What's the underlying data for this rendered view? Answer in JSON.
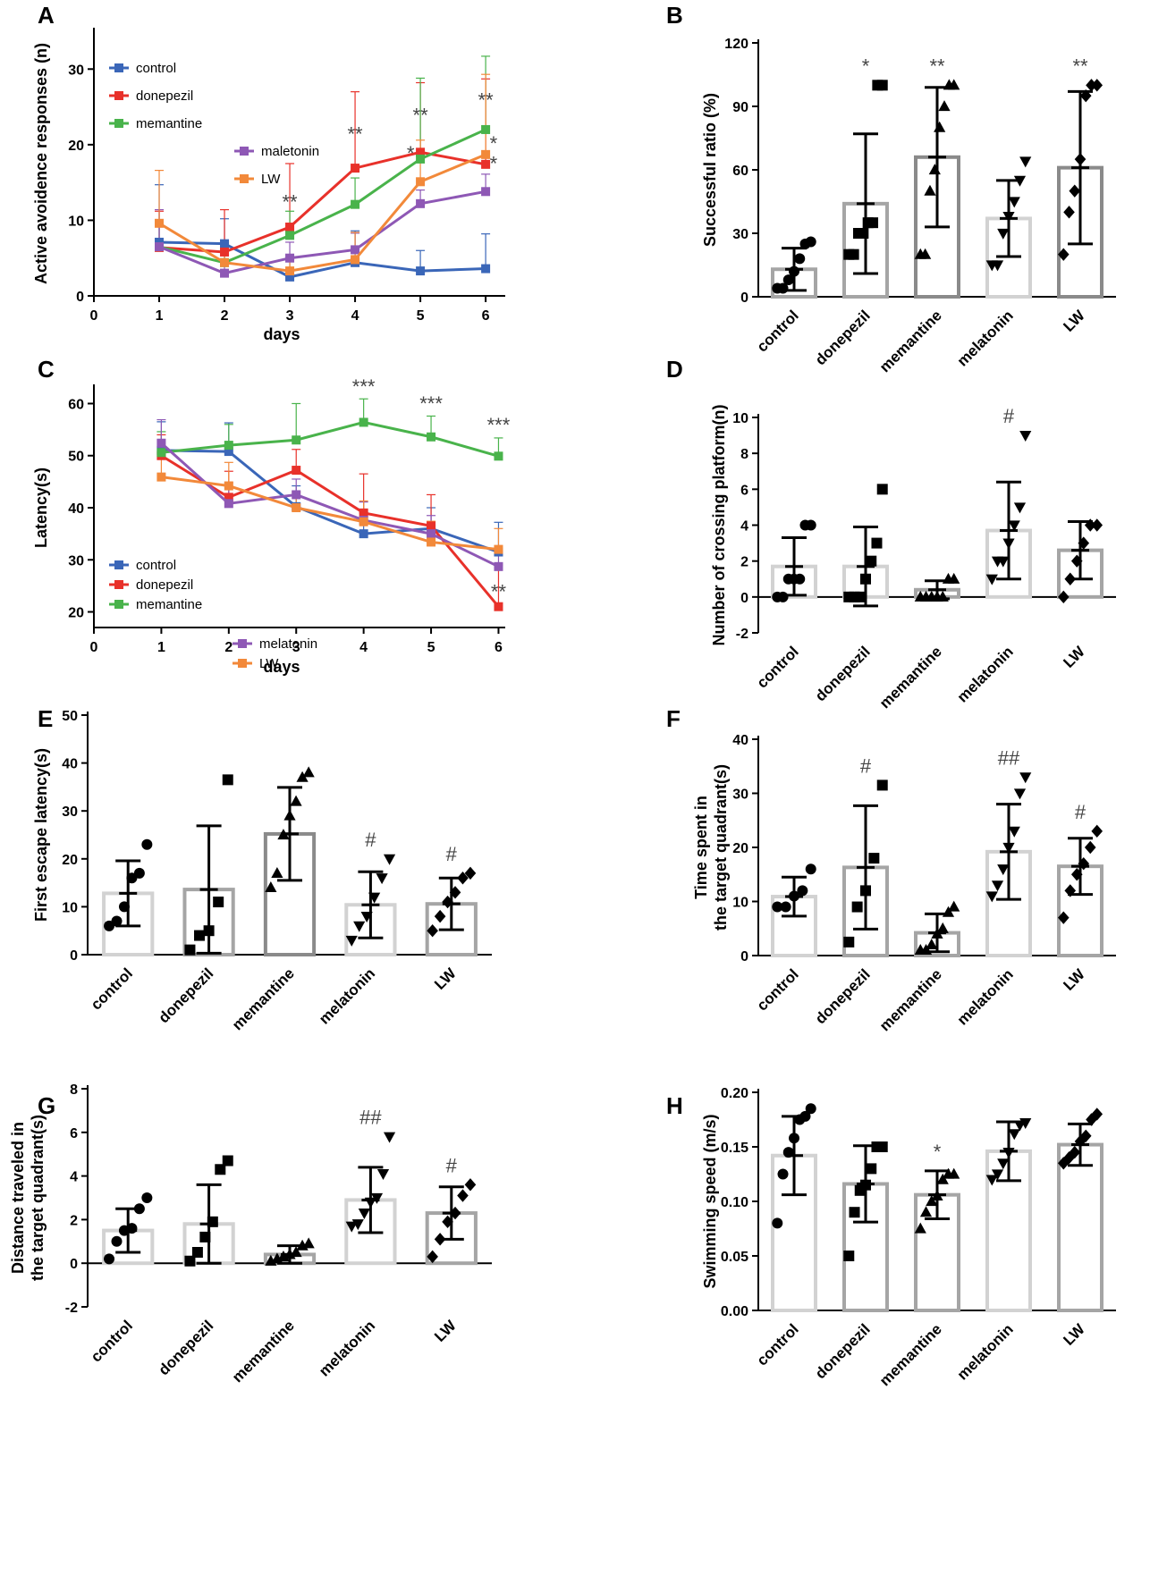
{
  "colors": {
    "control": "#3a66b8",
    "donepezil": "#e8312a",
    "memantine": "#49b34b",
    "melatonin": "#8e58b5",
    "LW": "#f2893a",
    "bar_light": "#d2d2d2",
    "bar_mid": "#a5a5a5",
    "bar_dark": "#8a8a8a",
    "sig_color": "#444444"
  },
  "chart_data": [
    {
      "panel": "A",
      "type": "line",
      "xlabel": "days",
      "ylabel": "Active avoidence responses (n)",
      "xlim": [
        0,
        6.3
      ],
      "ylim": [
        0,
        35
      ],
      "xticks": [
        "0",
        "1",
        "2",
        "3",
        "4",
        "5",
        "6"
      ],
      "yticks": [
        "0",
        "10",
        "20",
        "30"
      ],
      "x": [
        1,
        2,
        3,
        4,
        5,
        6
      ],
      "legend_position": "top-left",
      "series": [
        {
          "name": "control",
          "label": "control",
          "color_key": "control",
          "values": [
            7.1,
            6.9,
            2.5,
            4.4,
            3.3,
            3.6
          ],
          "err": [
            7.6,
            3.3,
            2.5,
            4.2,
            2.7,
            4.6
          ]
        },
        {
          "name": "donepezil",
          "label": "donepezil",
          "color_key": "donepezil",
          "values": [
            6.4,
            5.8,
            9.1,
            16.9,
            19.0,
            17.4
          ],
          "err": [
            4.8,
            5.6,
            8.4,
            10.1,
            9.2,
            11.3
          ]
        },
        {
          "name": "memantine",
          "label": "memantine",
          "color_key": "memantine",
          "values": [
            6.5,
            4.4,
            8.0,
            12.1,
            18.1,
            22.0
          ],
          "err": [
            3.4,
            2.2,
            3.2,
            3.5,
            10.7,
            9.7
          ]
        },
        {
          "name": "maletonin",
          "label": "maletonin",
          "color_key": "melatonin",
          "values": [
            6.5,
            3.0,
            5.0,
            6.1,
            12.2,
            13.8
          ],
          "err": [
            4.9,
            4.1,
            2.1,
            2.2,
            1.8,
            2.3
          ]
        },
        {
          "name": "LW",
          "label": "LW",
          "color_key": "LW",
          "values": [
            9.6,
            4.4,
            3.3,
            4.8,
            15.1,
            18.7
          ],
          "err": [
            7.0,
            1.9,
            1.5,
            3.6,
            5.5,
            10.6
          ]
        }
      ],
      "annotations": [
        {
          "text": "**",
          "x": 3,
          "y": 11.5
        },
        {
          "text": "**",
          "x": 4,
          "y": 20.5
        },
        {
          "text": "**",
          "x": 5,
          "y": 23.0
        },
        {
          "text": "*",
          "x": 4.85,
          "y": 18.0
        },
        {
          "text": "**",
          "x": 6,
          "y": 25.0
        },
        {
          "text": "*",
          "x": 6.12,
          "y": 19.3
        },
        {
          "text": "*",
          "x": 6.12,
          "y": 16.6
        }
      ]
    },
    {
      "panel": "B",
      "type": "bar",
      "ylabel": "Successful ratio (%)",
      "ylim": [
        0,
        120
      ],
      "yticks": [
        "0",
        "30",
        "60",
        "90",
        "120"
      ],
      "categories": [
        "control",
        "donepezil",
        "memantine",
        "melatonin",
        "LW"
      ],
      "values": [
        13,
        44,
        66,
        37,
        61
      ],
      "sd": [
        10,
        33,
        33,
        18,
        36
      ],
      "bar_shades": [
        "bar_mid",
        "bar_mid",
        "bar_dark",
        "bar_light",
        "bar_dark"
      ],
      "markers": [
        "circle",
        "square",
        "triangle",
        "triangle-down",
        "diamond"
      ],
      "points": [
        [
          4,
          4,
          8,
          12,
          18,
          25,
          26
        ],
        [
          20,
          20,
          30,
          30,
          35,
          35,
          100,
          100
        ],
        [
          20,
          20,
          50,
          60,
          80,
          90,
          100,
          100
        ],
        [
          15,
          15,
          30,
          38,
          45,
          55,
          64
        ],
        [
          20,
          40,
          50,
          65,
          95,
          100,
          100
        ]
      ],
      "annotations": [
        "",
        "*",
        "**",
        "",
        "**"
      ]
    },
    {
      "panel": "C",
      "type": "line",
      "xlabel": "days",
      "ylabel": "Latency(s)",
      "xlim": [
        0,
        6.1
      ],
      "ylim": [
        17,
        63
      ],
      "xticks": [
        "0",
        "1",
        "2",
        "3",
        "4",
        "5",
        "6"
      ],
      "yticks": [
        "20",
        "30",
        "40",
        "50",
        "60"
      ],
      "x": [
        1,
        2,
        3,
        4,
        5,
        6
      ],
      "legend_position": "bottom-left",
      "series": [
        {
          "name": "control",
          "label": "control",
          "color_key": "control",
          "values": [
            51.0,
            50.8,
            40.2,
            35.0,
            36.0,
            31.5
          ],
          "err": [
            5.5,
            5.5,
            4.0,
            4.0,
            4.0,
            5.7
          ]
        },
        {
          "name": "donepezil",
          "label": "donepezil",
          "color_key": "donepezil",
          "values": [
            50.0,
            42.0,
            47.2,
            39.0,
            36.5,
            21.0
          ],
          "err": [
            4.0,
            5.0,
            4.0,
            7.5,
            6.0,
            8.0
          ]
        },
        {
          "name": "memantine",
          "label": "memantine",
          "color_key": "memantine",
          "values": [
            50.6,
            52.0,
            53.0,
            56.4,
            53.6,
            49.9
          ],
          "err": [
            4.0,
            4.0,
            7.0,
            4.5,
            4.0,
            3.5
          ]
        },
        {
          "name": "melatonin",
          "label": "melatonin",
          "color_key": "melatonin",
          "values": [
            52.4,
            40.8,
            42.5,
            37.6,
            35.0,
            28.7
          ],
          "err": [
            4.5,
            4.0,
            3.0,
            3.5,
            3.5,
            3.0
          ]
        },
        {
          "name": "LW",
          "label": "LW",
          "color_key": "LW",
          "values": [
            45.9,
            44.2,
            40.0,
            37.3,
            33.4,
            32.0
          ],
          "err": [
            4.0,
            4.5,
            3.0,
            4.0,
            4.0,
            4.0
          ]
        }
      ],
      "annotations": [
        {
          "text": "***",
          "x": 4,
          "y": 62.0
        },
        {
          "text": "***",
          "x": 5,
          "y": 58.7
        },
        {
          "text": "***",
          "x": 6,
          "y": 54.6
        },
        {
          "text": "**",
          "x": 6,
          "y": 22.6
        }
      ]
    },
    {
      "panel": "D",
      "type": "bar",
      "ylabel": "Number of crossing platform(n)",
      "ylim": [
        -2,
        10
      ],
      "yticks": [
        "-2",
        "0",
        "2",
        "4",
        "6",
        "8",
        "10"
      ],
      "categories": [
        "control",
        "donepezil",
        "memantine",
        "melatonin",
        "LW"
      ],
      "values": [
        1.7,
        1.7,
        0.4,
        3.7,
        2.6
      ],
      "sd": [
        1.6,
        2.2,
        0.5,
        2.7,
        1.6
      ],
      "bar_shades": [
        "bar_light",
        "bar_light",
        "bar_mid",
        "bar_light",
        "bar_mid"
      ],
      "markers": [
        "circle",
        "square",
        "triangle",
        "triangle-down",
        "diamond"
      ],
      "points": [
        [
          0,
          0,
          1,
          1,
          1,
          4,
          4
        ],
        [
          0,
          0,
          0,
          1,
          2,
          3,
          6
        ],
        [
          0,
          0,
          0,
          0,
          0,
          1,
          1
        ],
        [
          1,
          2,
          2,
          3,
          4,
          5,
          9
        ],
        [
          0,
          1,
          2,
          3,
          4,
          4
        ]
      ],
      "annotations": [
        "",
        "",
        "",
        "#",
        ""
      ]
    },
    {
      "panel": "E",
      "type": "bar",
      "ylabel": "First escape latency(s)",
      "ylim": [
        0,
        50
      ],
      "yticks": [
        "0",
        "10",
        "20",
        "30",
        "40",
        "50"
      ],
      "categories": [
        "control",
        "donepezil",
        "memantine",
        "melatonin",
        "LW"
      ],
      "values": [
        12.8,
        13.6,
        25.2,
        10.4,
        10.6
      ],
      "sd": [
        6.8,
        13.3,
        9.7,
        6.9,
        5.4
      ],
      "bar_shades": [
        "bar_light",
        "bar_mid",
        "bar_dark",
        "bar_light",
        "bar_mid"
      ],
      "markers": [
        "circle",
        "square",
        "triangle",
        "triangle-down",
        "diamond"
      ],
      "points": [
        [
          6,
          7,
          10,
          16,
          17,
          23
        ],
        [
          1,
          4,
          5,
          11,
          36.5
        ],
        [
          14,
          17,
          25,
          29,
          32,
          37,
          38
        ],
        [
          3,
          6,
          8,
          12,
          16,
          20
        ],
        [
          5,
          8,
          11,
          13,
          16,
          17
        ]
      ],
      "annotations": [
        "",
        "",
        "",
        "#",
        "#"
      ]
    },
    {
      "panel": "F",
      "type": "bar",
      "ylabel": "Time spent in the target quadrant(s)",
      "ylim": [
        0,
        40
      ],
      "yticks": [
        "0",
        "10",
        "20",
        "30",
        "40"
      ],
      "categories": [
        "control",
        "donepezil",
        "memantine",
        "melatonin",
        "LW"
      ],
      "values": [
        10.9,
        16.3,
        4.2,
        19.2,
        16.5
      ],
      "sd": [
        3.6,
        11.4,
        3.5,
        8.8,
        5.2
      ],
      "bar_shades": [
        "bar_light",
        "bar_mid",
        "bar_mid",
        "bar_light",
        "bar_mid"
      ],
      "markers": [
        "circle",
        "square",
        "triangle",
        "triangle-down",
        "diamond"
      ],
      "points": [
        [
          9,
          9,
          11,
          12,
          16
        ],
        [
          2.5,
          9,
          12,
          18,
          31.5
        ],
        [
          1,
          1,
          2,
          4,
          5,
          8,
          9
        ],
        [
          11,
          13,
          16,
          20,
          23,
          30,
          33
        ],
        [
          7,
          12,
          15,
          17,
          20,
          23
        ]
      ],
      "annotations": [
        "",
        "#",
        "",
        "##",
        "#"
      ]
    },
    {
      "panel": "G",
      "type": "bar",
      "ylabel": "Distance traveled in the target quadrant(s)",
      "ylim": [
        -2,
        8
      ],
      "yticks": [
        "-2",
        "0",
        "2",
        "4",
        "6",
        "8"
      ],
      "categories": [
        "control",
        "donepezil",
        "memantine",
        "melatonin",
        "LW"
      ],
      "values": [
        1.5,
        1.8,
        0.4,
        2.9,
        2.3
      ],
      "sd": [
        1.0,
        1.8,
        0.4,
        1.5,
        1.2
      ],
      "bar_shades": [
        "bar_light",
        "bar_light",
        "bar_mid",
        "bar_light",
        "bar_mid"
      ],
      "markers": [
        "circle",
        "square",
        "triangle",
        "triangle-down",
        "diamond"
      ],
      "points": [
        [
          0.2,
          1.0,
          1.5,
          1.6,
          2.5,
          3.0
        ],
        [
          0.1,
          0.5,
          1.2,
          1.9,
          4.3,
          4.7
        ],
        [
          0.1,
          0.2,
          0.3,
          0.4,
          0.5,
          0.8,
          0.9
        ],
        [
          1.7,
          1.8,
          2.3,
          2.8,
          3.0,
          4.1,
          5.8
        ],
        [
          0.3,
          1.1,
          1.9,
          2.3,
          3.1,
          3.6
        ]
      ],
      "annotations": [
        "",
        "",
        "",
        "##",
        "#"
      ]
    },
    {
      "panel": "H",
      "type": "bar",
      "ylabel": "Swimming speed (m/s)",
      "ylim": [
        0,
        0.2
      ],
      "yticks": [
        "0.00",
        "0.05",
        "0.10",
        "0.15",
        "0.20"
      ],
      "categories": [
        "control",
        "donepezil",
        "memantine",
        "melatonin",
        "LW"
      ],
      "values": [
        0.142,
        0.116,
        0.106,
        0.146,
        0.152
      ],
      "sd": [
        0.036,
        0.035,
        0.022,
        0.027,
        0.019
      ],
      "bar_shades": [
        "bar_light",
        "bar_mid",
        "bar_mid",
        "bar_light",
        "bar_mid"
      ],
      "markers": [
        "circle",
        "square",
        "triangle",
        "triangle-down",
        "diamond"
      ],
      "points": [
        [
          0.08,
          0.125,
          0.145,
          0.158,
          0.175,
          0.178,
          0.185
        ],
        [
          0.05,
          0.09,
          0.11,
          0.115,
          0.13,
          0.15,
          0.15
        ],
        [
          0.075,
          0.09,
          0.1,
          0.105,
          0.12,
          0.125,
          0.125
        ],
        [
          0.12,
          0.125,
          0.135,
          0.145,
          0.162,
          0.17,
          0.172
        ],
        [
          0.135,
          0.14,
          0.145,
          0.155,
          0.16,
          0.175,
          0.18
        ]
      ],
      "annotations": [
        "",
        "",
        "*",
        "",
        ""
      ]
    }
  ]
}
